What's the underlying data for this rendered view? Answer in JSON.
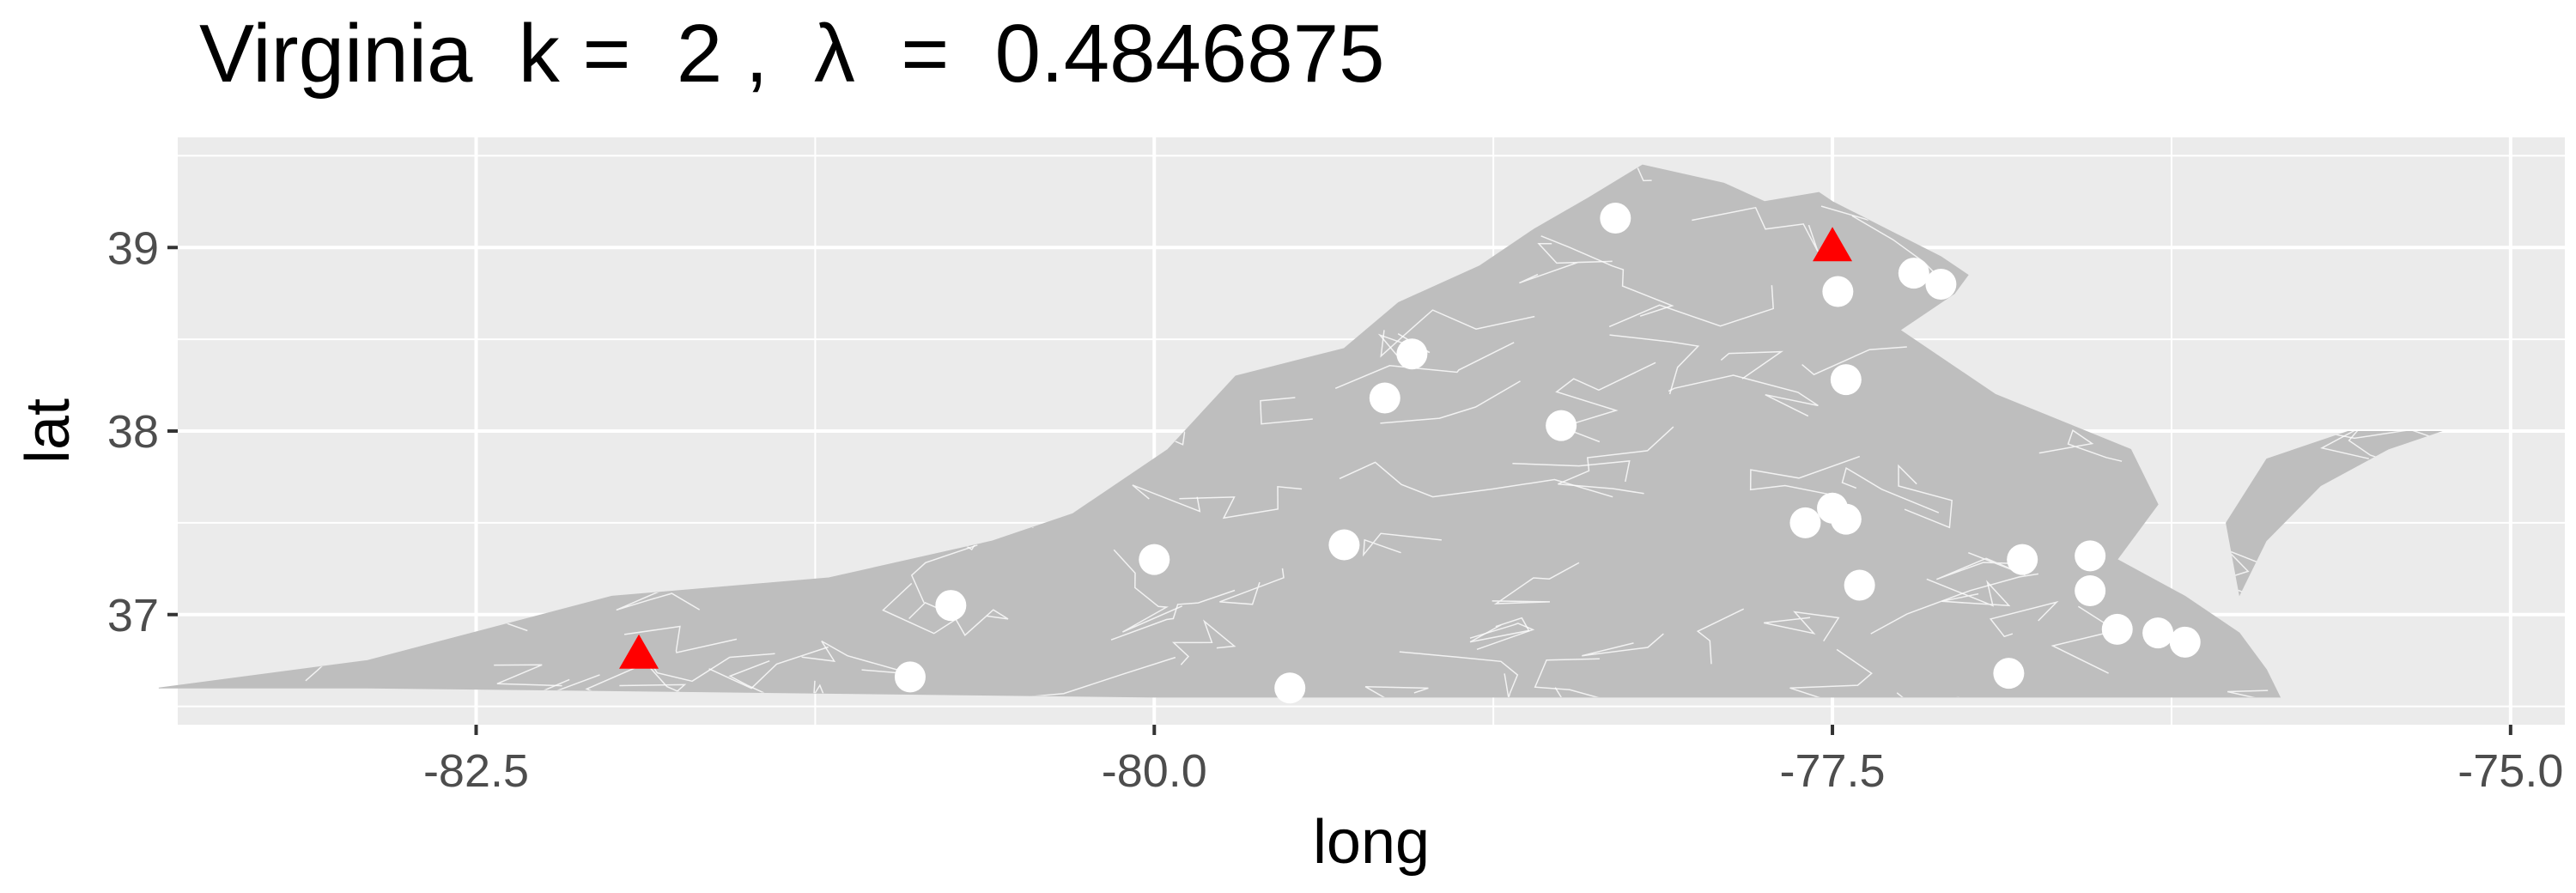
{
  "chart_data": {
    "type": "scatter",
    "title": "Virginia  k =  2 ,  λ  =  0.4846875",
    "xlabel": "long",
    "ylabel": "lat",
    "xlim": [
      -83.6,
      -74.8
    ],
    "ylim": [
      36.4,
      39.6
    ],
    "x_ticks": [
      "-82.5",
      "-80.0",
      "-77.5",
      "-75.0"
    ],
    "x_tick_values": [
      -82.5,
      -80.0,
      -77.5,
      -75.0
    ],
    "y_ticks": [
      "37",
      "38",
      "39"
    ],
    "y_tick_values": [
      37,
      38,
      39
    ],
    "grid": true,
    "colors": {
      "panel": "#ebebeb",
      "grid": "#ffffff",
      "region_fill": "#bebebe",
      "points": "#ffffff",
      "centers": "#ff0000"
    },
    "region_outline": [
      [
        -83.67,
        36.6
      ],
      [
        -82.9,
        36.75
      ],
      [
        -82.0,
        37.1
      ],
      [
        -81.2,
        37.2
      ],
      [
        -80.6,
        37.4
      ],
      [
        -80.3,
        37.55
      ],
      [
        -79.95,
        37.9
      ],
      [
        -79.7,
        38.3
      ],
      [
        -79.3,
        38.45
      ],
      [
        -79.1,
        38.7
      ],
      [
        -78.8,
        38.9
      ],
      [
        -78.6,
        39.1
      ],
      [
        -78.4,
        39.27
      ],
      [
        -78.2,
        39.45
      ],
      [
        -77.9,
        39.35
      ],
      [
        -77.75,
        39.25
      ],
      [
        -77.55,
        39.3
      ],
      [
        -77.5,
        39.25
      ],
      [
        -77.3,
        39.1
      ],
      [
        -77.1,
        38.95
      ],
      [
        -77.0,
        38.85
      ],
      [
        -77.05,
        38.75
      ],
      [
        -77.25,
        38.55
      ],
      [
        -76.9,
        38.2
      ],
      [
        -76.4,
        37.9
      ],
      [
        -76.3,
        37.6
      ],
      [
        -76.45,
        37.3
      ],
      [
        -76.2,
        37.1
      ],
      [
        -76.0,
        36.9
      ],
      [
        -75.9,
        36.7
      ],
      [
        -75.85,
        36.55
      ],
      [
        -76.9,
        36.55
      ],
      [
        -78.5,
        36.55
      ],
      [
        -80.0,
        36.55
      ],
      [
        -81.7,
        36.58
      ],
      [
        -82.9,
        36.6
      ]
    ],
    "eastern_shore_outline": [
      [
        -76.0,
        37.1
      ],
      [
        -75.9,
        37.4
      ],
      [
        -75.7,
        37.7
      ],
      [
        -75.45,
        37.9
      ],
      [
        -75.25,
        38.0
      ],
      [
        -75.6,
        38.0
      ],
      [
        -75.9,
        37.85
      ],
      [
        -76.05,
        37.5
      ]
    ],
    "points": [
      {
        "x": -78.3,
        "y": 39.16
      },
      {
        "x": -77.48,
        "y": 38.76
      },
      {
        "x": -77.2,
        "y": 38.86
      },
      {
        "x": -77.1,
        "y": 38.8
      },
      {
        "x": -79.05,
        "y": 38.42
      },
      {
        "x": -79.15,
        "y": 38.18
      },
      {
        "x": -77.45,
        "y": 38.28
      },
      {
        "x": -78.5,
        "y": 38.03
      },
      {
        "x": -77.5,
        "y": 37.58
      },
      {
        "x": -77.45,
        "y": 37.52
      },
      {
        "x": -77.6,
        "y": 37.5
      },
      {
        "x": -79.3,
        "y": 37.38
      },
      {
        "x": -80.0,
        "y": 37.3
      },
      {
        "x": -76.8,
        "y": 37.3
      },
      {
        "x": -76.55,
        "y": 37.32
      },
      {
        "x": -77.4,
        "y": 37.16
      },
      {
        "x": -76.55,
        "y": 37.13
      },
      {
        "x": -80.75,
        "y": 37.05
      },
      {
        "x": -76.45,
        "y": 36.92
      },
      {
        "x": -76.3,
        "y": 36.9
      },
      {
        "x": -76.2,
        "y": 36.85
      },
      {
        "x": -80.9,
        "y": 36.66
      },
      {
        "x": -76.85,
        "y": 36.68
      },
      {
        "x": -79.5,
        "y": 36.6
      }
    ],
    "centers": [
      {
        "x": -77.5,
        "y": 39.0
      },
      {
        "x": -81.9,
        "y": 36.78
      }
    ]
  }
}
